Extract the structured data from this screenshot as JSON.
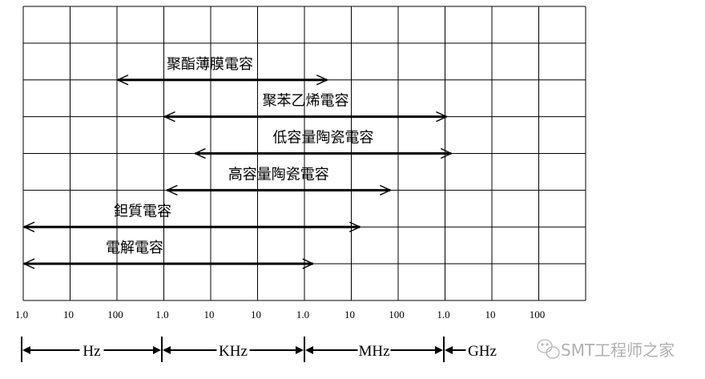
{
  "diagram": {
    "grid": {
      "decades": 12,
      "rows": 8,
      "line_color": "#000000"
    },
    "capacitors": [
      {
        "label": "聚酯薄膜電容",
        "log10_hz_range": [
          2.0,
          6.5
        ]
      },
      {
        "label": "聚苯乙烯電容",
        "log10_hz_range": [
          3.0,
          9.05
        ]
      },
      {
        "label": "低容量陶瓷電容",
        "log10_hz_range": [
          3.65,
          9.15
        ]
      },
      {
        "label": "高容量陶瓷電容",
        "log10_hz_range": [
          3.05,
          7.85
        ]
      },
      {
        "label": "鉭質電容",
        "log10_hz_range": [
          0.0,
          7.2
        ]
      },
      {
        "label": "電解電容",
        "log10_hz_range": [
          0.0,
          6.2
        ]
      }
    ],
    "ticks": [
      "1.0",
      "10",
      "100",
      "1.0",
      "10",
      "10",
      "1.0",
      "10",
      "100",
      "1.0",
      "10",
      "100"
    ],
    "units": [
      "Hz",
      "KHz",
      "MHz",
      "GHz"
    ]
  },
  "watermark": {
    "text": "SMT工程师之家",
    "icon": "wechat-icon",
    "color": "#b0b0b0"
  }
}
